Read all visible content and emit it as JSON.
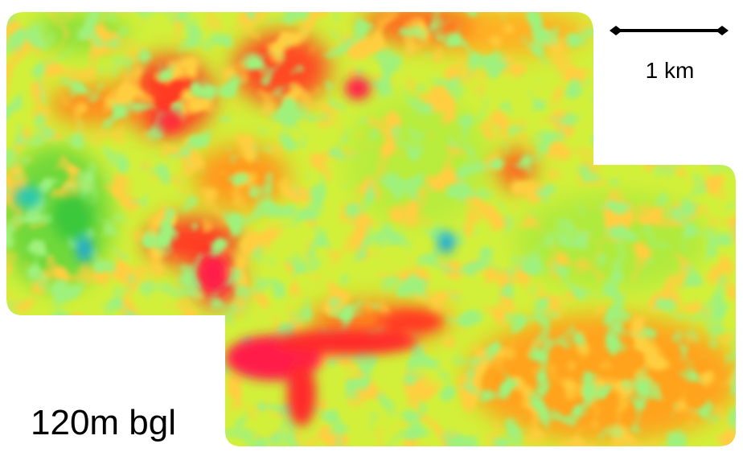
{
  "scale_bar": {
    "label": "1 km"
  },
  "depth_label": "120m bgl"
}
